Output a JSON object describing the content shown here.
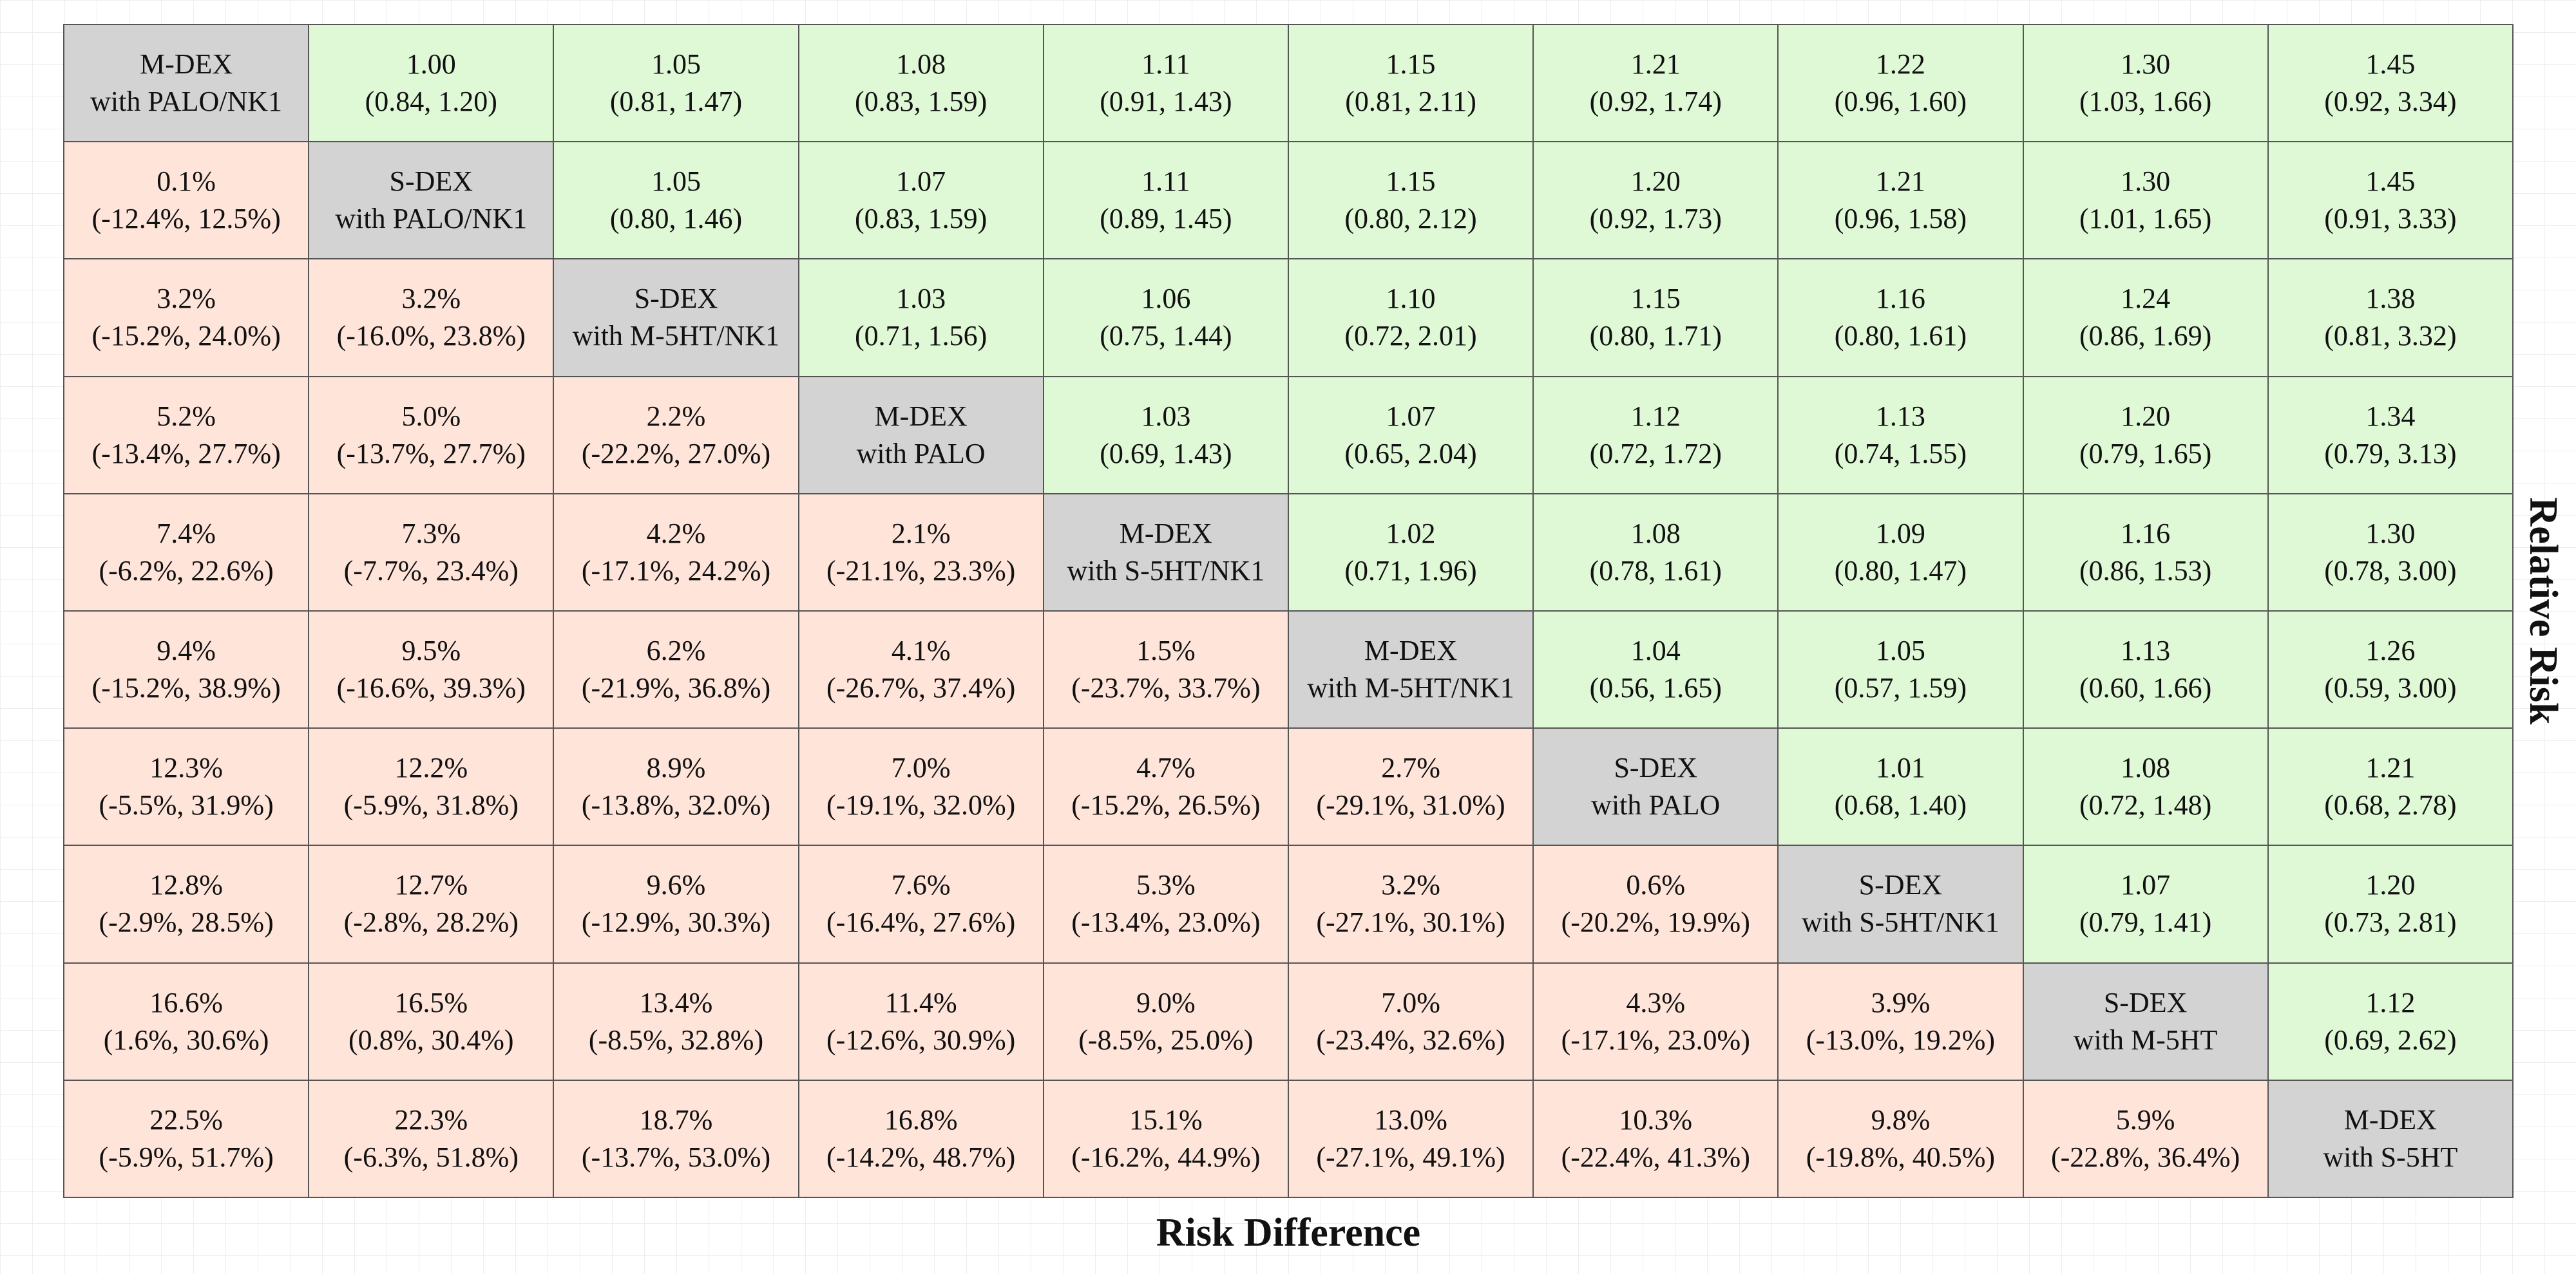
{
  "chart_data": {
    "type": "table",
    "xlabel": "Risk Difference",
    "ylabel": "Relative Risk",
    "treatments": [
      [
        "M-DEX",
        "with PALO/NK1"
      ],
      [
        "S-DEX",
        "with PALO/NK1"
      ],
      [
        "S-DEX",
        "with M-5HT/NK1"
      ],
      [
        "M-DEX",
        "with PALO"
      ],
      [
        "M-DEX",
        "with S-5HT/NK1"
      ],
      [
        "M-DEX",
        "with M-5HT/NK1"
      ],
      [
        "S-DEX",
        "with PALO"
      ],
      [
        "S-DEX",
        "with S-5HT/NK1"
      ],
      [
        "S-DEX",
        "with M-5HT"
      ],
      [
        "M-DEX",
        "with S-5HT"
      ]
    ],
    "rows": [
      [
        [
          "M-DEX",
          "with PALO/NK1"
        ],
        [
          "1.00",
          "(0.84, 1.20)"
        ],
        [
          "1.05",
          "(0.81, 1.47)"
        ],
        [
          "1.08",
          "(0.83, 1.59)"
        ],
        [
          "1.11",
          "(0.91, 1.43)"
        ],
        [
          "1.15",
          "(0.81, 2.11)"
        ],
        [
          "1.21",
          "(0.92, 1.74)"
        ],
        [
          "1.22",
          "(0.96, 1.60)"
        ],
        [
          "1.30",
          "(1.03, 1.66)"
        ],
        [
          "1.45",
          "(0.92, 3.34)"
        ]
      ],
      [
        [
          "0.1%",
          "(-12.4%, 12.5%)"
        ],
        [
          "S-DEX",
          "with PALO/NK1"
        ],
        [
          "1.05",
          "(0.80, 1.46)"
        ],
        [
          "1.07",
          "(0.83, 1.59)"
        ],
        [
          "1.11",
          "(0.89, 1.45)"
        ],
        [
          "1.15",
          "(0.80, 2.12)"
        ],
        [
          "1.20",
          "(0.92, 1.73)"
        ],
        [
          "1.21",
          "(0.96, 1.58)"
        ],
        [
          "1.30",
          "(1.01, 1.65)"
        ],
        [
          "1.45",
          "(0.91, 3.33)"
        ]
      ],
      [
        [
          "3.2%",
          "(-15.2%, 24.0%)"
        ],
        [
          "3.2%",
          "(-16.0%, 23.8%)"
        ],
        [
          "S-DEX",
          "with M-5HT/NK1"
        ],
        [
          "1.03",
          "(0.71, 1.56)"
        ],
        [
          "1.06",
          "(0.75, 1.44)"
        ],
        [
          "1.10",
          "(0.72, 2.01)"
        ],
        [
          "1.15",
          "(0.80, 1.71)"
        ],
        [
          "1.16",
          "(0.80, 1.61)"
        ],
        [
          "1.24",
          "(0.86, 1.69)"
        ],
        [
          "1.38",
          "(0.81, 3.32)"
        ]
      ],
      [
        [
          "5.2%",
          "(-13.4%, 27.7%)"
        ],
        [
          "5.0%",
          "(-13.7%, 27.7%)"
        ],
        [
          "2.2%",
          "(-22.2%, 27.0%)"
        ],
        [
          "M-DEX",
          "with PALO"
        ],
        [
          "1.03",
          "(0.69, 1.43)"
        ],
        [
          "1.07",
          "(0.65, 2.04)"
        ],
        [
          "1.12",
          "(0.72, 1.72)"
        ],
        [
          "1.13",
          "(0.74, 1.55)"
        ],
        [
          "1.20",
          "(0.79, 1.65)"
        ],
        [
          "1.34",
          "(0.79, 3.13)"
        ]
      ],
      [
        [
          "7.4%",
          "(-6.2%, 22.6%)"
        ],
        [
          "7.3%",
          "(-7.7%, 23.4%)"
        ],
        [
          "4.2%",
          "(-17.1%, 24.2%)"
        ],
        [
          "2.1%",
          "(-21.1%, 23.3%)"
        ],
        [
          "M-DEX",
          "with S-5HT/NK1"
        ],
        [
          "1.02",
          "(0.71, 1.96)"
        ],
        [
          "1.08",
          "(0.78, 1.61)"
        ],
        [
          "1.09",
          "(0.80, 1.47)"
        ],
        [
          "1.16",
          "(0.86, 1.53)"
        ],
        [
          "1.30",
          "(0.78, 3.00)"
        ]
      ],
      [
        [
          "9.4%",
          "(-15.2%, 38.9%)"
        ],
        [
          "9.5%",
          "(-16.6%, 39.3%)"
        ],
        [
          "6.2%",
          "(-21.9%, 36.8%)"
        ],
        [
          "4.1%",
          "(-26.7%, 37.4%)"
        ],
        [
          "1.5%",
          "(-23.7%, 33.7%)"
        ],
        [
          "M-DEX",
          "with M-5HT/NK1"
        ],
        [
          "1.04",
          "(0.56, 1.65)"
        ],
        [
          "1.05",
          "(0.57, 1.59)"
        ],
        [
          "1.13",
          "(0.60, 1.66)"
        ],
        [
          "1.26",
          "(0.59, 3.00)"
        ]
      ],
      [
        [
          "12.3%",
          "(-5.5%, 31.9%)"
        ],
        [
          "12.2%",
          "(-5.9%, 31.8%)"
        ],
        [
          "8.9%",
          "(-13.8%, 32.0%)"
        ],
        [
          "7.0%",
          "(-19.1%, 32.0%)"
        ],
        [
          "4.7%",
          "(-15.2%, 26.5%)"
        ],
        [
          "2.7%",
          "(-29.1%, 31.0%)"
        ],
        [
          "S-DEX",
          "with PALO"
        ],
        [
          "1.01",
          "(0.68, 1.40)"
        ],
        [
          "1.08",
          "(0.72, 1.48)"
        ],
        [
          "1.21",
          "(0.68, 2.78)"
        ]
      ],
      [
        [
          "12.8%",
          "(-2.9%, 28.5%)"
        ],
        [
          "12.7%",
          "(-2.8%, 28.2%)"
        ],
        [
          "9.6%",
          "(-12.9%, 30.3%)"
        ],
        [
          "7.6%",
          "(-16.4%, 27.6%)"
        ],
        [
          "5.3%",
          "(-13.4%, 23.0%)"
        ],
        [
          "3.2%",
          "(-27.1%, 30.1%)"
        ],
        [
          "0.6%",
          "(-20.2%, 19.9%)"
        ],
        [
          "S-DEX",
          "with S-5HT/NK1"
        ],
        [
          "1.07",
          "(0.79, 1.41)"
        ],
        [
          "1.20",
          "(0.73, 2.81)"
        ]
      ],
      [
        [
          "16.6%",
          "(1.6%, 30.6%)"
        ],
        [
          "16.5%",
          "(0.8%, 30.4%)"
        ],
        [
          "13.4%",
          "(-8.5%, 32.8%)"
        ],
        [
          "11.4%",
          "(-12.6%, 30.9%)"
        ],
        [
          "9.0%",
          "(-8.5%, 25.0%)"
        ],
        [
          "7.0%",
          "(-23.4%, 32.6%)"
        ],
        [
          "4.3%",
          "(-17.1%, 23.0%)"
        ],
        [
          "3.9%",
          "(-13.0%, 19.2%)"
        ],
        [
          "S-DEX",
          "with M-5HT"
        ],
        [
          "1.12",
          "(0.69, 2.62)"
        ]
      ],
      [
        [
          "22.5%",
          "(-5.9%, 51.7%)"
        ],
        [
          "22.3%",
          "(-6.3%, 51.8%)"
        ],
        [
          "18.7%",
          "(-13.7%, 53.0%)"
        ],
        [
          "16.8%",
          "(-14.2%, 48.7%)"
        ],
        [
          "15.1%",
          "(-16.2%, 44.9%)"
        ],
        [
          "13.0%",
          "(-27.1%, 49.1%)"
        ],
        [
          "10.3%",
          "(-22.4%, 41.3%)"
        ],
        [
          "9.8%",
          "(-19.8%, 40.5%)"
        ],
        [
          "5.9%",
          "(-22.8%, 36.4%)"
        ],
        [
          "M-DEX",
          "with S-5HT"
        ]
      ]
    ],
    "colors": {
      "upper_relative_risk": "#dff8d6",
      "lower_risk_difference": "#ffe4da",
      "diagonal_treatment": "#d3d3d3"
    }
  }
}
